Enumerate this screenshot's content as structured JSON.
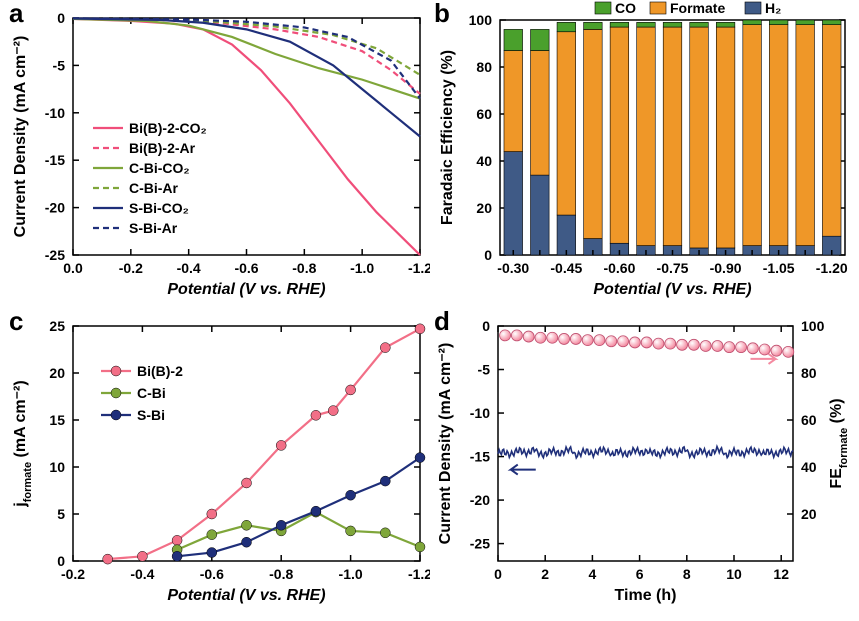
{
  "a": {
    "label": "a",
    "x_title": "Potential (V vs. RHE)",
    "y_title": "Current Density (mA cm⁻²)",
    "xlim": [
      0.0,
      -1.2
    ],
    "xticks": [
      0.0,
      -0.2,
      -0.4,
      -0.6,
      -0.8,
      -1.0,
      -1.2
    ],
    "ylim": [
      -25,
      0
    ],
    "yticks": [
      0,
      -5,
      -10,
      -15,
      -20,
      -25
    ],
    "bg": "#ffffff",
    "series": [
      {
        "name": "Bi(B)-2-CO₂",
        "color": "#f04e7a",
        "dash": "",
        "data": [
          [
            0,
            -0.1
          ],
          [
            -0.2,
            -0.3
          ],
          [
            -0.35,
            -0.6
          ],
          [
            -0.45,
            -1.2
          ],
          [
            -0.55,
            -2.8
          ],
          [
            -0.65,
            -5.5
          ],
          [
            -0.75,
            -9
          ],
          [
            -0.85,
            -13
          ],
          [
            -0.95,
            -17
          ],
          [
            -1.05,
            -20.5
          ],
          [
            -1.15,
            -23.5
          ],
          [
            -1.2,
            -25
          ]
        ]
      },
      {
        "name": "Bi(B)-2-Ar",
        "color": "#f04e7a",
        "dash": "6,4",
        "data": [
          [
            0,
            -0.05
          ],
          [
            -0.3,
            -0.2
          ],
          [
            -0.5,
            -0.5
          ],
          [
            -0.7,
            -1.2
          ],
          [
            -0.85,
            -2.0
          ],
          [
            -1.0,
            -3.5
          ],
          [
            -1.1,
            -5.5
          ],
          [
            -1.2,
            -8
          ]
        ]
      },
      {
        "name": "C-Bi-CO₂",
        "color": "#7fa63a",
        "dash": "",
        "data": [
          [
            0,
            -0.1
          ],
          [
            -0.25,
            -0.3
          ],
          [
            -0.4,
            -0.8
          ],
          [
            -0.55,
            -2.0
          ],
          [
            -0.7,
            -3.8
          ],
          [
            -0.85,
            -5.3
          ],
          [
            -1.0,
            -6.5
          ],
          [
            -1.1,
            -7.5
          ],
          [
            -1.2,
            -8.5
          ]
        ]
      },
      {
        "name": "C-Bi-Ar",
        "color": "#7fa63a",
        "dash": "6,4",
        "data": [
          [
            0,
            -0.05
          ],
          [
            -0.3,
            -0.15
          ],
          [
            -0.5,
            -0.4
          ],
          [
            -0.7,
            -0.9
          ],
          [
            -0.9,
            -1.8
          ],
          [
            -1.05,
            -3.2
          ],
          [
            -1.2,
            -6.0
          ]
        ]
      },
      {
        "name": "S-Bi-CO₂",
        "color": "#1f2f7a",
        "dash": "",
        "data": [
          [
            0,
            -0.05
          ],
          [
            -0.3,
            -0.2
          ],
          [
            -0.45,
            -0.5
          ],
          [
            -0.6,
            -1.2
          ],
          [
            -0.75,
            -2.5
          ],
          [
            -0.9,
            -5.0
          ],
          [
            -1.0,
            -7.5
          ],
          [
            -1.1,
            -10
          ],
          [
            -1.2,
            -12.5
          ]
        ]
      },
      {
        "name": "S-Bi-Ar",
        "color": "#1f2f7a",
        "dash": "6,4",
        "data": [
          [
            0,
            -0.03
          ],
          [
            -0.4,
            -0.15
          ],
          [
            -0.6,
            -0.4
          ],
          [
            -0.8,
            -1.0
          ],
          [
            -0.95,
            -2.0
          ],
          [
            -1.1,
            -4.5
          ],
          [
            -1.2,
            -8.5
          ]
        ]
      }
    ]
  },
  "b": {
    "label": "b",
    "x_title": "Potential (V vs. RHE)",
    "y_title": "Faradaic Efficiency (%)",
    "ylim": [
      0,
      100
    ],
    "yticks": [
      0,
      20,
      40,
      60,
      80,
      100
    ],
    "categories": [
      "-0.30",
      "",
      "-0.45",
      "",
      "-0.60",
      "",
      "-0.75",
      "",
      "-0.90",
      "",
      "-1.05",
      "",
      "-1.20"
    ],
    "legend": [
      {
        "name": "CO",
        "color": "#4aa02c"
      },
      {
        "name": "Formate",
        "color": "#ef9728"
      },
      {
        "name": "H₂",
        "color": "#3f5a86"
      }
    ],
    "bars": [
      {
        "h2": 44,
        "formate": 43,
        "co": 9
      },
      {
        "h2": 34,
        "formate": 53,
        "co": 9
      },
      {
        "h2": 17,
        "formate": 78,
        "co": 4
      },
      {
        "h2": 7,
        "formate": 89,
        "co": 3
      },
      {
        "h2": 5,
        "formate": 92,
        "co": 2
      },
      {
        "h2": 4,
        "formate": 93,
        "co": 2
      },
      {
        "h2": 4,
        "formate": 93,
        "co": 2
      },
      {
        "h2": 3,
        "formate": 94,
        "co": 2
      },
      {
        "h2": 3,
        "formate": 94,
        "co": 2
      },
      {
        "h2": 4,
        "formate": 94,
        "co": 2
      },
      {
        "h2": 4,
        "formate": 94,
        "co": 2
      },
      {
        "h2": 4,
        "formate": 94,
        "co": 2
      },
      {
        "h2": 8,
        "formate": 90,
        "co": 2
      }
    ],
    "bar_width": 0.7
  },
  "c": {
    "label": "c",
    "x_title": "Potential (V vs. RHE)",
    "y_title": "jformate (mA cm⁻²)",
    "xlim": [
      -0.2,
      -1.2
    ],
    "xticks": [
      -0.2,
      -0.4,
      -0.6,
      -0.8,
      -1.0,
      -1.2
    ],
    "ylim": [
      0,
      25
    ],
    "yticks": [
      0,
      5,
      10,
      15,
      20,
      25
    ],
    "series": [
      {
        "name": "Bi(B)-2",
        "color": "#f26f87",
        "data": [
          [
            -0.3,
            0.2
          ],
          [
            -0.4,
            0.5
          ],
          [
            -0.5,
            2.2
          ],
          [
            -0.6,
            5.0
          ],
          [
            -0.7,
            8.3
          ],
          [
            -0.8,
            12.3
          ],
          [
            -0.9,
            15.5
          ],
          [
            -0.95,
            16.0
          ],
          [
            -1.0,
            18.2
          ],
          [
            -1.1,
            22.7
          ],
          [
            -1.2,
            24.7
          ]
        ]
      },
      {
        "name": "C-Bi",
        "color": "#7fa63a",
        "data": [
          [
            -0.5,
            1.2
          ],
          [
            -0.6,
            2.8
          ],
          [
            -0.7,
            3.8
          ],
          [
            -0.8,
            3.2
          ],
          [
            -0.9,
            5.2
          ],
          [
            -1.0,
            3.2
          ],
          [
            -1.1,
            3.0
          ],
          [
            -1.2,
            1.5
          ]
        ]
      },
      {
        "name": "S-Bi",
        "color": "#1f2f7a",
        "data": [
          [
            -0.5,
            0.5
          ],
          [
            -0.6,
            0.9
          ],
          [
            -0.7,
            2.0
          ],
          [
            -0.8,
            3.8
          ],
          [
            -0.9,
            5.3
          ],
          [
            -1.0,
            7.0
          ],
          [
            -1.1,
            8.5
          ],
          [
            -1.2,
            11.0
          ]
        ]
      }
    ]
  },
  "d": {
    "label": "d",
    "x_title": "Time (h)",
    "y_left_title": "Current Density (mA cm⁻²)",
    "y_right_title": "FEformate (%)",
    "xlim": [
      0,
      12.5
    ],
    "xticks": [
      0,
      2,
      4,
      6,
      8,
      10,
      12
    ],
    "ylim_l": [
      -27,
      0
    ],
    "yticks_l": [
      0,
      -5,
      -10,
      -15,
      -20,
      -25
    ],
    "ylim_r": [
      0,
      100
    ],
    "yticks_r": [
      20,
      40,
      60,
      80,
      100
    ],
    "j_color": "#1f2f7a",
    "fe_color": "#f48aa0",
    "fe_points": [
      [
        0.3,
        96
      ],
      [
        0.8,
        96
      ],
      [
        1.3,
        95.5
      ],
      [
        1.8,
        95
      ],
      [
        2.3,
        95
      ],
      [
        2.8,
        94.5
      ],
      [
        3.3,
        94.5
      ],
      [
        3.8,
        94
      ],
      [
        4.3,
        94
      ],
      [
        4.8,
        93.5
      ],
      [
        5.3,
        93.5
      ],
      [
        5.8,
        93
      ],
      [
        6.3,
        93
      ],
      [
        6.8,
        92.5
      ],
      [
        7.3,
        92.5
      ],
      [
        7.8,
        92
      ],
      [
        8.3,
        92
      ],
      [
        8.8,
        91.5
      ],
      [
        9.3,
        91.5
      ],
      [
        9.8,
        91
      ],
      [
        10.3,
        91
      ],
      [
        10.8,
        90.5
      ],
      [
        11.3,
        90
      ],
      [
        11.8,
        89.5
      ],
      [
        12.3,
        89
      ]
    ],
    "j_base": -14.5
  }
}
